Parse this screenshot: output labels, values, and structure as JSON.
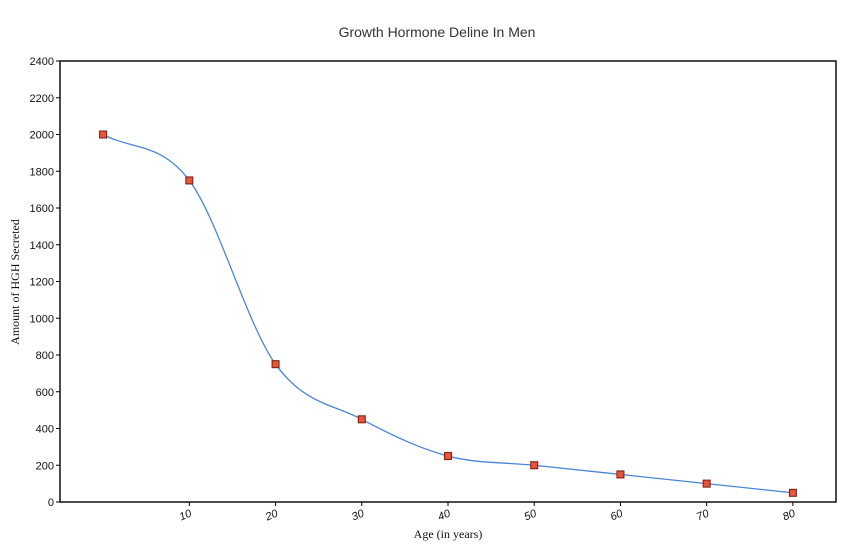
{
  "chart_data": {
    "type": "line",
    "title": "Growth Hormone Deline In Men",
    "xlabel": "Age (in years)",
    "ylabel": "Amount of HGH Secreted",
    "x": [
      0,
      10,
      20,
      30,
      40,
      50,
      60,
      70,
      80
    ],
    "x_tick_labels": [
      "10",
      "20",
      "30",
      "40",
      "50",
      "60",
      "70",
      "80"
    ],
    "x_tick_values": [
      10,
      20,
      30,
      40,
      50,
      60,
      70,
      80
    ],
    "xlim": [
      -5,
      85
    ],
    "ylim": [
      0,
      2400
    ],
    "y_ticks": [
      0,
      200,
      400,
      600,
      800,
      1000,
      1200,
      1400,
      1600,
      1800,
      2000,
      2200,
      2400
    ],
    "series": [
      {
        "values": [
          2000,
          1750,
          750,
          450,
          250,
          200,
          150,
          100,
          50
        ]
      }
    ],
    "smooth": true,
    "grid": false,
    "colors": {
      "line": "#4a86d8",
      "marker_fill": "#e8553b",
      "marker_stroke": "#7a1a0a"
    }
  }
}
